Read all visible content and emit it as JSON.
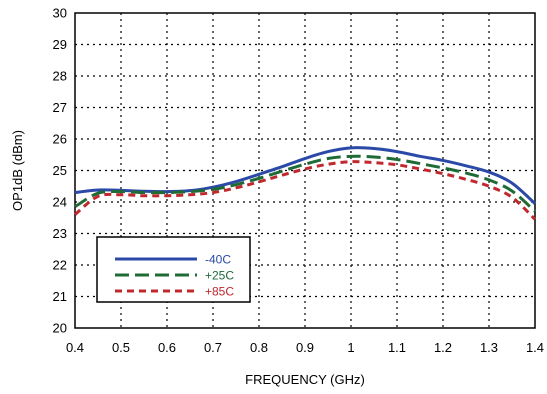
{
  "chart_data": {
    "type": "line",
    "title": "",
    "xlabel": "FREQUENCY (GHz)",
    "ylabel": "OP1dB (dBm)",
    "xlim": [
      0.4,
      1.4
    ],
    "ylim": [
      20,
      30
    ],
    "xticks": [
      0.4,
      0.5,
      0.6,
      0.7,
      0.8,
      0.9,
      1,
      1.1,
      1.2,
      1.3,
      1.4
    ],
    "yticks": [
      20,
      21,
      22,
      23,
      24,
      25,
      26,
      27,
      28,
      29,
      30
    ],
    "grid": true,
    "legend_position": "lower-left",
    "series": [
      {
        "name": "-40C",
        "color": "#2b4aa8",
        "style": "solid",
        "x": [
          0.4,
          0.45,
          0.5,
          0.55,
          0.6,
          0.65,
          0.7,
          0.75,
          0.8,
          0.85,
          0.9,
          0.95,
          1.0,
          1.05,
          1.1,
          1.15,
          1.2,
          1.25,
          1.3,
          1.35,
          1.4
        ],
        "y": [
          24.3,
          24.38,
          24.37,
          24.34,
          24.33,
          24.36,
          24.47,
          24.65,
          24.88,
          25.12,
          25.38,
          25.6,
          25.72,
          25.7,
          25.6,
          25.45,
          25.32,
          25.15,
          24.95,
          24.6,
          23.95
        ]
      },
      {
        "name": "+25C",
        "color": "#1f6b35",
        "style": "long-dash",
        "x": [
          0.4,
          0.45,
          0.5,
          0.55,
          0.6,
          0.65,
          0.7,
          0.75,
          0.8,
          0.85,
          0.9,
          0.95,
          1.0,
          1.05,
          1.1,
          1.15,
          1.2,
          1.25,
          1.3,
          1.35,
          1.4
        ],
        "y": [
          23.85,
          24.28,
          24.33,
          24.3,
          24.3,
          24.33,
          24.4,
          24.55,
          24.75,
          24.98,
          25.2,
          25.38,
          25.45,
          25.43,
          25.35,
          25.22,
          25.08,
          24.92,
          24.7,
          24.35,
          23.7
        ]
      },
      {
        "name": "+85C",
        "color": "#c0282d",
        "style": "short-dash",
        "x": [
          0.4,
          0.45,
          0.5,
          0.55,
          0.6,
          0.65,
          0.7,
          0.75,
          0.8,
          0.85,
          0.9,
          0.95,
          1.0,
          1.05,
          1.1,
          1.15,
          1.2,
          1.25,
          1.3,
          1.35,
          1.4
        ],
        "y": [
          23.6,
          24.18,
          24.23,
          24.2,
          24.2,
          24.23,
          24.3,
          24.45,
          24.64,
          24.85,
          25.05,
          25.2,
          25.28,
          25.25,
          25.18,
          25.05,
          24.9,
          24.72,
          24.5,
          24.15,
          23.45
        ]
      }
    ]
  }
}
